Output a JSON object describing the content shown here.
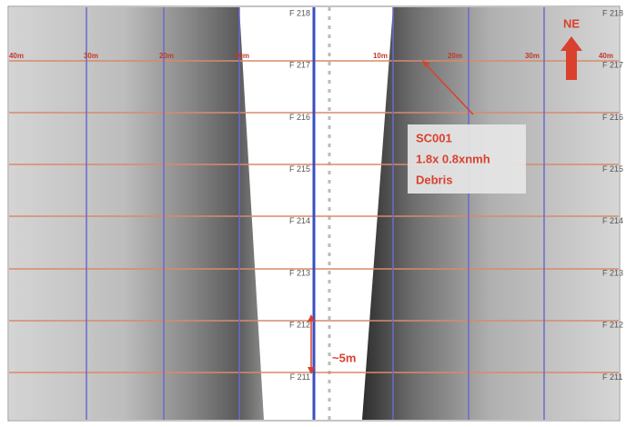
{
  "image": {
    "fix_labels": [
      "F 218",
      "F 217",
      "F 216",
      "F 215",
      "F 214",
      "F 213",
      "F 212",
      "F 211"
    ],
    "range_labels": [
      "40m",
      "30m",
      "20m",
      "10m",
      "10m",
      "20m",
      "30m",
      "40m"
    ],
    "target": {
      "id": "SC001",
      "size": "1.8x 0.8xnmh",
      "type": "Debris"
    },
    "north_label": "NE",
    "scale_label": "~5m"
  }
}
